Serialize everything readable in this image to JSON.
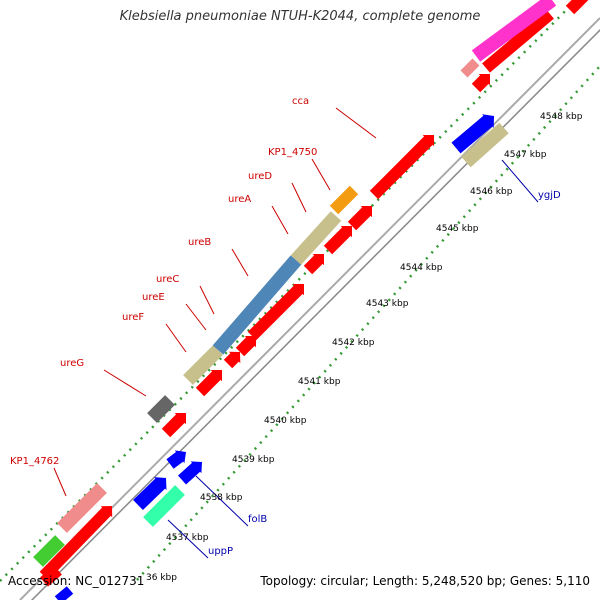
{
  "title": "Klebsiella pneumoniae NTUH-K2044, complete genome",
  "footer": {
    "accession": "Accession: NC_012731",
    "topology": "Topology: circular; Length: 5,248,520 bp; Genes: 5,110"
  },
  "ticks": [
    {
      "label": "36 kbp",
      "value": 4536
    },
    {
      "label": "4537 kbp",
      "value": 4537
    },
    {
      "label": "4538 kbp",
      "value": 4538
    },
    {
      "label": "4539 kbp",
      "value": 4539
    },
    {
      "label": "4540 kbp",
      "value": 4540
    },
    {
      "label": "4541 kbp",
      "value": 4541
    },
    {
      "label": "4542 kbp",
      "value": 4542
    },
    {
      "label": "4543 kbp",
      "value": 4543
    },
    {
      "label": "4544 kbp",
      "value": 4544
    },
    {
      "label": "4545 kbp",
      "value": 4545
    },
    {
      "label": "4546 kbp",
      "value": 4546
    },
    {
      "label": "4547 kbp",
      "value": 4547
    },
    {
      "label": "4548 kbp",
      "value": 4548
    }
  ],
  "colors": {
    "backbone": "#aaaaaa",
    "forward_cds": "#ff0000",
    "tick": "#339933",
    "label_forward": "#cc0000",
    "label_reverse": "#0000aa",
    "urea_block": "#c8c08c",
    "ure_c": "#4f86b8"
  },
  "genes": [
    {
      "name": "cca",
      "strand": "forward",
      "color": "#cc0000"
    },
    {
      "name": "KP1_4750",
      "strand": "forward",
      "color": "#cc0000"
    },
    {
      "name": "ureD",
      "strand": "forward",
      "color": "#cc0000"
    },
    {
      "name": "ureA",
      "strand": "forward",
      "color": "#cc0000"
    },
    {
      "name": "ureB",
      "strand": "forward",
      "color": "#cc0000"
    },
    {
      "name": "ureC",
      "strand": "forward",
      "color": "#cc0000"
    },
    {
      "name": "ureE",
      "strand": "forward",
      "color": "#cc0000"
    },
    {
      "name": "ureF",
      "strand": "forward",
      "color": "#cc0000"
    },
    {
      "name": "ureG",
      "strand": "forward",
      "color": "#cc0000"
    },
    {
      "name": "KP1_4762",
      "strand": "forward",
      "color": "#cc0000"
    },
    {
      "name": "ygjD",
      "strand": "reverse",
      "color": "#0000aa"
    },
    {
      "name": "folB",
      "strand": "reverse",
      "color": "#0000aa"
    },
    {
      "name": "uppP",
      "strand": "reverse",
      "color": "#0000aa"
    }
  ]
}
